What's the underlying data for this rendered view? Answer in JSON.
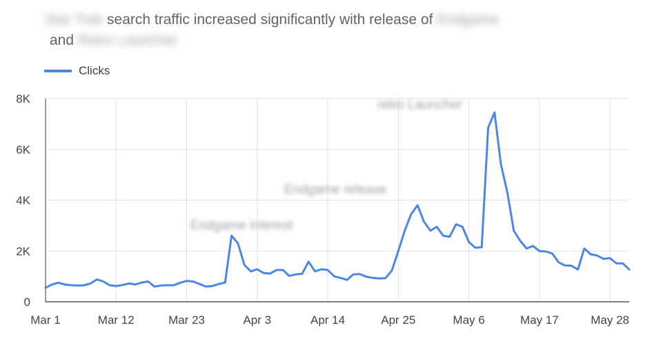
{
  "title": {
    "part1": "Star Trek",
    "part2": " search traffic increased significantly with release of ",
    "part3": "Endgame",
    "part4": "and ",
    "part5": "Retro Launcher"
  },
  "legend": {
    "label": "Clicks",
    "color": "#4a86e8"
  },
  "chart_data": {
    "type": "line",
    "x_tick_labels": [
      "Mar 1",
      "Mar 12",
      "Mar 23",
      "Apr 3",
      "Apr 14",
      "Apr 25",
      "May 6",
      "May 17",
      "May 28"
    ],
    "y_tick_labels": [
      "0",
      "2K",
      "4K",
      "6K",
      "8K"
    ],
    "ylim": [
      0,
      8000
    ],
    "grid": true,
    "series": [
      {
        "name": "Clicks",
        "color": "#4a86e8",
        "start_date": "Mar 1",
        "values": [
          550,
          680,
          750,
          680,
          650,
          640,
          650,
          720,
          880,
          800,
          650,
          620,
          660,
          720,
          680,
          760,
          800,
          600,
          640,
          650,
          650,
          750,
          820,
          800,
          700,
          600,
          620,
          700,
          760,
          2600,
          2300,
          1450,
          1200,
          1280,
          1130,
          1110,
          1250,
          1250,
          1020,
          1080,
          1100,
          1580,
          1200,
          1280,
          1250,
          1000,
          940,
          860,
          1080,
          1090,
          990,
          940,
          920,
          930,
          1230,
          2000,
          2800,
          3450,
          3800,
          3150,
          2800,
          2950,
          2600,
          2560,
          3050,
          2950,
          2350,
          2130,
          2150,
          6850,
          7450,
          5400,
          4300,
          2800,
          2400,
          2100,
          2200,
          2000,
          1980,
          1900,
          1550,
          1430,
          1420,
          1270,
          2100,
          1870,
          1820,
          1690,
          1720,
          1510,
          1510,
          1270
        ]
      }
    ],
    "annotations": [
      {
        "text": "Endgame interest",
        "date": "Mar 30"
      },
      {
        "text": "Endgame release",
        "date": "Apr 26"
      },
      {
        "text": "retro Launcher",
        "date": "May 10"
      }
    ]
  }
}
